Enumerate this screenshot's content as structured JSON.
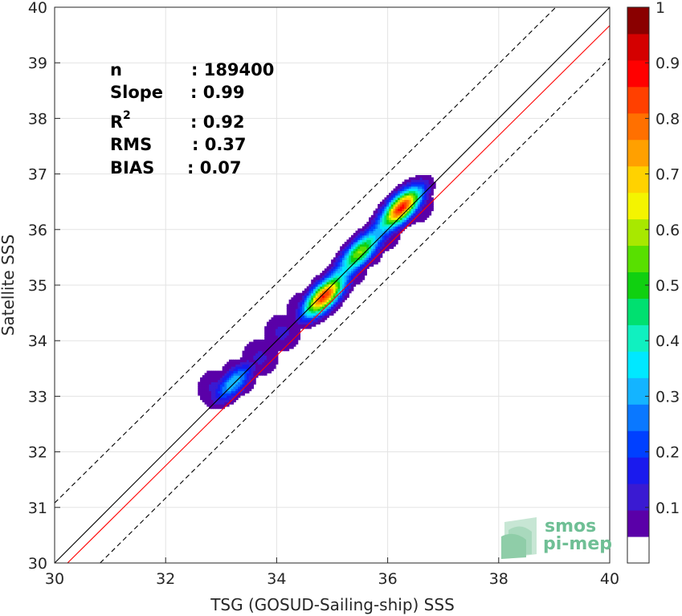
{
  "chart_data": {
    "type": "contour-density-scatter",
    "xlabel": "TSG (GOSUD-Sailing-ship) SSS",
    "ylabel": "Satellite SSS",
    "xlim": [
      30,
      40
    ],
    "ylim": [
      30,
      40
    ],
    "xticks": [
      "30",
      "32",
      "34",
      "36",
      "38",
      "40"
    ],
    "yticks": [
      "30",
      "31",
      "32",
      "33",
      "34",
      "35",
      "36",
      "37",
      "38",
      "39",
      "40"
    ],
    "grid": true,
    "stats": [
      {
        "label": "n",
        "value": ": 189400"
      },
      {
        "label": "Slope",
        "value": ": 0.99"
      },
      {
        "label": "R",
        "sup": "2",
        "value": ": 0.92"
      },
      {
        "label": "RMS",
        "value": ": 0.37"
      },
      {
        "label": "BIAS",
        "value": ": 0.07"
      }
    ],
    "reference_lines": [
      {
        "name": "1:1",
        "color": "#000000",
        "style": "solid",
        "points": [
          [
            30,
            30
          ],
          [
            40,
            40
          ]
        ]
      },
      {
        "name": "regression",
        "color": "#ff0000",
        "style": "solid",
        "points": [
          [
            30,
            29.77
          ],
          [
            40,
            39.67
          ]
        ]
      },
      {
        "name": "upper-bound",
        "color": "#000000",
        "style": "dashed",
        "points": [
          [
            30,
            31.08
          ],
          [
            39.03,
            40
          ]
        ]
      },
      {
        "name": "lower-bound",
        "color": "#000000",
        "style": "dashed",
        "points": [
          [
            30.82,
            30
          ],
          [
            40,
            39.08
          ]
        ]
      }
    ],
    "density_peaks": [
      {
        "x": 33.22,
        "y": 33.25,
        "value": 0.35
      },
      {
        "x": 34.85,
        "y": 34.8,
        "value": 0.9
      },
      {
        "x": 35.5,
        "y": 35.6,
        "value": 0.6
      },
      {
        "x": 36.25,
        "y": 36.4,
        "value": 0.92
      }
    ],
    "colorbar": {
      "min": 0,
      "max": 1,
      "ticks": [
        "0.1",
        "0.2",
        "0.3",
        "0.4",
        "0.5",
        "0.6",
        "0.7",
        "0.8",
        "0.9",
        "1"
      ],
      "levels": [
        "#ffffff",
        "#5a00a8",
        "#3a1ad2",
        "#1a1aee",
        "#0040ff",
        "#0a78ff",
        "#14b4ff",
        "#00e8ff",
        "#10f0c0",
        "#00e070",
        "#10d010",
        "#58e000",
        "#a8e800",
        "#f4f400",
        "#ffd200",
        "#ffa000",
        "#ff7000",
        "#ff4000",
        "#ff0000",
        "#d40000",
        "#8a0000"
      ]
    }
  },
  "logo": {
    "line1": "smos",
    "line2": "pi-mep",
    "color": "#6fbf95"
  }
}
